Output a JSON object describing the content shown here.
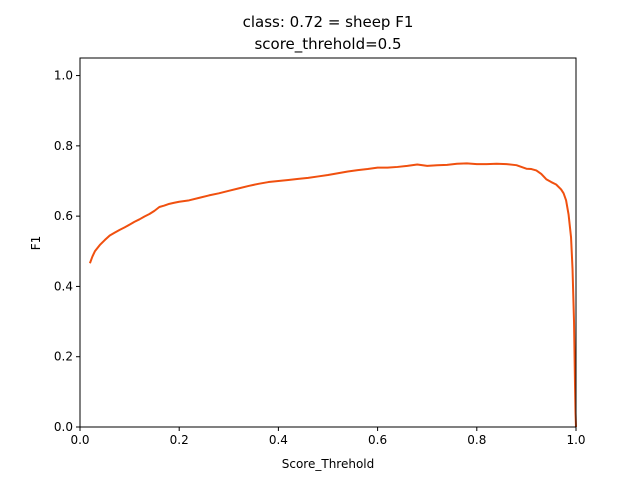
{
  "chart_data": {
    "type": "line",
    "title": "class: 0.72 = sheep F1",
    "subtitle": "score_threhold=0.5",
    "xlabel": "Score_Threhold",
    "ylabel": "F1",
    "xlim": [
      0.0,
      1.0
    ],
    "ylim": [
      0.0,
      1.05
    ],
    "x_ticks": [
      "0.0",
      "0.2",
      "0.4",
      "0.6",
      "0.8",
      "1.0"
    ],
    "y_ticks": [
      "0.0",
      "0.2",
      "0.4",
      "0.6",
      "0.8",
      "1.0"
    ],
    "grid": false,
    "series": [
      {
        "color": "#f0500f",
        "x": [
          0.02,
          0.025,
          0.03,
          0.04,
          0.05,
          0.06,
          0.07,
          0.08,
          0.09,
          0.1,
          0.11,
          0.12,
          0.13,
          0.14,
          0.15,
          0.16,
          0.17,
          0.18,
          0.19,
          0.2,
          0.22,
          0.24,
          0.26,
          0.28,
          0.3,
          0.32,
          0.34,
          0.36,
          0.38,
          0.4,
          0.42,
          0.44,
          0.46,
          0.48,
          0.5,
          0.52,
          0.54,
          0.56,
          0.58,
          0.6,
          0.62,
          0.64,
          0.66,
          0.68,
          0.7,
          0.72,
          0.74,
          0.76,
          0.78,
          0.8,
          0.82,
          0.84,
          0.86,
          0.88,
          0.9,
          0.91,
          0.92,
          0.93,
          0.94,
          0.95,
          0.96,
          0.97,
          0.975,
          0.98,
          0.985,
          0.99,
          0.993,
          0.996,
          0.998,
          0.999,
          1.0
        ],
        "y": [
          0.466,
          0.485,
          0.5,
          0.518,
          0.532,
          0.545,
          0.553,
          0.561,
          0.568,
          0.576,
          0.584,
          0.591,
          0.599,
          0.606,
          0.615,
          0.626,
          0.63,
          0.635,
          0.638,
          0.641,
          0.645,
          0.652,
          0.659,
          0.665,
          0.672,
          0.679,
          0.686,
          0.692,
          0.697,
          0.7,
          0.703,
          0.706,
          0.709,
          0.713,
          0.717,
          0.722,
          0.727,
          0.731,
          0.734,
          0.738,
          0.738,
          0.74,
          0.743,
          0.747,
          0.743,
          0.745,
          0.746,
          0.749,
          0.75,
          0.748,
          0.748,
          0.749,
          0.748,
          0.745,
          0.735,
          0.734,
          0.73,
          0.72,
          0.705,
          0.697,
          0.69,
          0.676,
          0.665,
          0.645,
          0.605,
          0.54,
          0.45,
          0.3,
          0.12,
          0.04,
          0.0
        ]
      }
    ]
  }
}
